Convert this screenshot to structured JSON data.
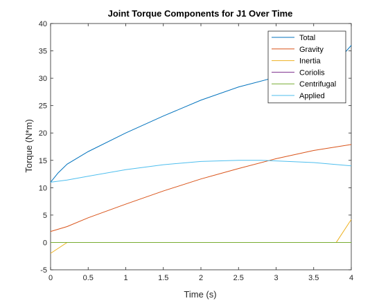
{
  "chart_data": {
    "type": "line",
    "title": "Joint Torque Components for J1 Over Time",
    "xlabel": "Time (s)",
    "ylabel": "Torque (N*m)",
    "xlim": [
      0,
      4
    ],
    "ylim": [
      -5,
      40
    ],
    "xticks": [
      0,
      0.5,
      1,
      1.5,
      2,
      2.5,
      3,
      3.5,
      4
    ],
    "xtick_labels": [
      "0",
      "0.5",
      "1",
      "1.5",
      "2",
      "2.5",
      "3",
      "3.5",
      "4"
    ],
    "yticks": [
      -5,
      0,
      5,
      10,
      15,
      20,
      25,
      30,
      35,
      40
    ],
    "ytick_labels": [
      "-5",
      "0",
      "5",
      "10",
      "15",
      "20",
      "25",
      "30",
      "35",
      "40"
    ],
    "grid": false,
    "legend_position": "top-right",
    "series": [
      {
        "name": "Total",
        "color": "#0072BD",
        "x": [
          0,
          0.1,
          0.22,
          0.5,
          1.0,
          1.5,
          2.0,
          2.5,
          3.0,
          3.5,
          3.78,
          4.0
        ],
        "y": [
          11.0,
          12.7,
          14.3,
          16.6,
          20.0,
          23.1,
          26.0,
          28.4,
          30.2,
          31.7,
          32.6,
          36.0
        ]
      },
      {
        "name": "Gravity",
        "color": "#D95319",
        "x": [
          0,
          0.22,
          0.5,
          1.0,
          1.5,
          2.0,
          2.5,
          3.0,
          3.5,
          4.0
        ],
        "y": [
          2.0,
          2.9,
          4.5,
          7.0,
          9.4,
          11.6,
          13.5,
          15.3,
          16.8,
          17.9
        ]
      },
      {
        "name": "Inertia",
        "color": "#EDB120",
        "x": [
          0,
          0.22,
          0.5,
          1.0,
          2.0,
          3.0,
          3.8,
          4.0
        ],
        "y": [
          -2.0,
          0.0,
          0.0,
          0.0,
          0.0,
          0.0,
          0.0,
          4.2
        ]
      },
      {
        "name": "Coriolis",
        "color": "#7E2F8E",
        "x": [
          0,
          4.0
        ],
        "y": [
          0.0,
          0.0
        ]
      },
      {
        "name": "Centrifugal",
        "color": "#77AC30",
        "x": [
          0,
          4.0
        ],
        "y": [
          0.0,
          0.0
        ]
      },
      {
        "name": "Applied",
        "color": "#4DBEEE",
        "x": [
          0,
          0.22,
          0.5,
          1.0,
          1.5,
          2.0,
          2.5,
          2.8,
          3.0,
          3.5,
          4.0
        ],
        "y": [
          11.0,
          11.4,
          12.1,
          13.3,
          14.2,
          14.8,
          15.0,
          15.0,
          14.9,
          14.6,
          14.0
        ]
      }
    ]
  }
}
